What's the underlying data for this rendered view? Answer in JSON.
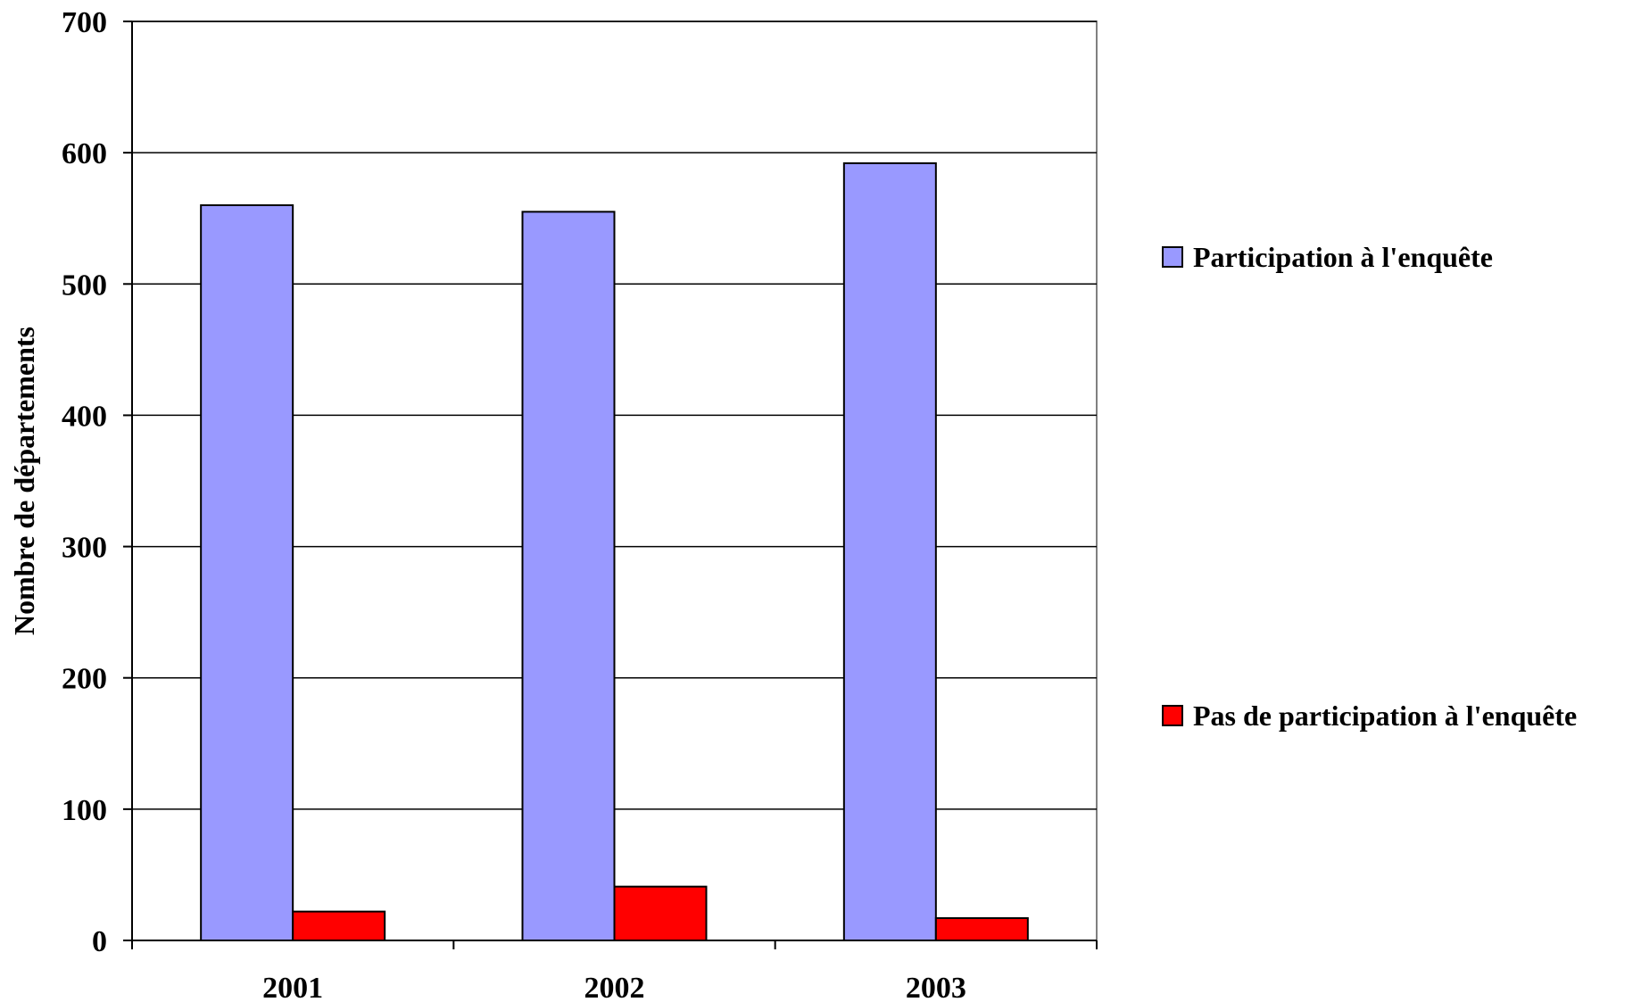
{
  "chart_data": {
    "type": "bar",
    "title": "",
    "xlabel": "",
    "ylabel": "Nombre de départements",
    "categories": [
      "2001",
      "2002",
      "2003"
    ],
    "series": [
      {
        "name": "Participation à l'enquête",
        "values": [
          560,
          555,
          592
        ],
        "color": "#9999ff"
      },
      {
        "name": "Pas de participation à l'enquête",
        "values": [
          22,
          41,
          17
        ],
        "color": "#ff0000"
      }
    ],
    "ylim": [
      0,
      700
    ],
    "yticks": [
      0,
      100,
      200,
      300,
      400,
      500,
      600,
      700
    ],
    "grid": true,
    "legend_position": "right"
  }
}
